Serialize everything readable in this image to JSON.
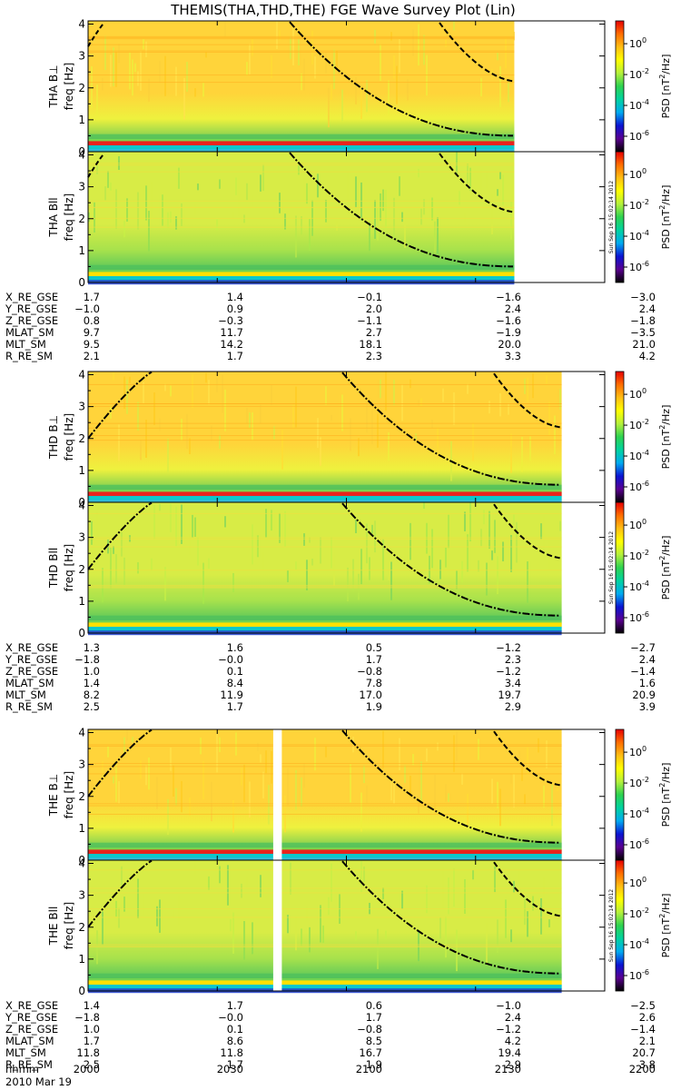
{
  "title": "THEMIS(THA,THD,THE) FGE Wave Survey Plot (Lin)",
  "chart_data": {
    "type": "heatmap",
    "x_unit": "hhmm",
    "x_ticks": [
      "2000",
      "2030",
      "2100",
      "2130",
      "2200"
    ],
    "xlim": [
      "2000",
      "2200"
    ],
    "date": "2010 Mar 19",
    "ylabel": "freq [Hz]",
    "y_ticks": [
      0,
      1,
      2,
      3,
      4
    ],
    "ylim": [
      0,
      4.1
    ],
    "colorbar": {
      "label": "PSD [nT²/Hz]",
      "label_base": "PSD [nT",
      "label_sup": "2",
      "label_tail": "/Hz]",
      "scale": "log",
      "ticks": [
        {
          "value": 1,
          "label": "10",
          "exp": "0"
        },
        {
          "value": 0.01,
          "label": "10",
          "exp": "-2"
        },
        {
          "value": 0.0001,
          "label": "10",
          "exp": "-4"
        },
        {
          "value": 1e-06,
          "label": "10",
          "exp": "-6"
        }
      ],
      "colors": [
        "#000000",
        "#5a0090",
        "#0a14d2",
        "#00aaf0",
        "#00d2a0",
        "#2ed250",
        "#b4f03c",
        "#ffff00",
        "#ffbe14",
        "#ff6e00",
        "#e60000"
      ]
    },
    "timestamp": "Sun Sep 16 15:02:14 2012",
    "probes": [
      {
        "panels": [
          {
            "label": "THA B⊥",
            "band_color": "#e9231c"
          },
          {
            "label": "THA Bll",
            "band_color": "#ffe000"
          }
        ],
        "data_end": "2139",
        "gaps": [],
        "ephemeris": [
          {
            "name": "X_RE_GSE",
            "values": [
              "1.7",
              "1.4",
              "−0.1",
              "−1.6",
              "−3.0"
            ]
          },
          {
            "name": "Y_RE_GSE",
            "values": [
              "−1.0",
              "0.9",
              "2.0",
              "2.4",
              "2.4"
            ]
          },
          {
            "name": "Z_RE_GSE",
            "values": [
              "0.8",
              "−0.3",
              "−1.1",
              "−1.6",
              "−1.8"
            ]
          },
          {
            "name": "MLAT_SM",
            "values": [
              "9.7",
              "11.7",
              "2.7",
              "−1.9",
              "−3.5"
            ]
          },
          {
            "name": "MLT_SM",
            "values": [
              "9.5",
              "14.2",
              "18.1",
              "20.0",
              "21.0"
            ]
          },
          {
            "name": "R_RE_SM",
            "values": [
              "2.1",
              "1.7",
              "2.3",
              "3.3",
              "4.2"
            ]
          }
        ]
      },
      {
        "panels": [
          {
            "label": "THD B⊥",
            "band_color": "#e9231c"
          },
          {
            "label": "THD Bll",
            "band_color": "#ffe000"
          }
        ],
        "data_end": "2150",
        "gaps": [],
        "ephemeris": [
          {
            "name": "X_RE_GSE",
            "values": [
              "1.3",
              "1.6",
              "0.5",
              "−1.2",
              "−2.7"
            ]
          },
          {
            "name": "Y_RE_GSE",
            "values": [
              "−1.8",
              "−0.0",
              "1.7",
              "2.3",
              "2.4"
            ]
          },
          {
            "name": "Z_RE_GSE",
            "values": [
              "1.0",
              "0.1",
              "−0.8",
              "−1.2",
              "−1.4"
            ]
          },
          {
            "name": "MLAT_SM",
            "values": [
              "1.4",
              "8.4",
              "7.8",
              "3.4",
              "1.6"
            ]
          },
          {
            "name": "MLT_SM",
            "values": [
              "8.2",
              "11.9",
              "17.0",
              "19.7",
              "20.9"
            ]
          },
          {
            "name": "R_RE_SM",
            "values": [
              "2.5",
              "1.7",
              "1.9",
              "2.9",
              "3.9"
            ]
          }
        ]
      },
      {
        "panels": [
          {
            "label": "THE B⊥",
            "band_color": "#e9231c"
          },
          {
            "label": "THE Bll",
            "band_color": "#ffe000"
          }
        ],
        "data_end": "2150",
        "gaps": [
          [
            "2043",
            "2045"
          ]
        ],
        "ephemeris": [
          {
            "name": "X_RE_GSE",
            "values": [
              "1.4",
              "1.7",
              "0.6",
              "−1.0",
              "−2.5"
            ]
          },
          {
            "name": "Y_RE_GSE",
            "values": [
              "−1.8",
              "−0.0",
              "1.7",
              "2.4",
              "2.6"
            ]
          },
          {
            "name": "Z_RE_GSE",
            "values": [
              "1.0",
              "0.1",
              "−0.8",
              "−1.2",
              "−1.4"
            ]
          },
          {
            "name": "MLAT_SM",
            "values": [
              "1.7",
              "8.6",
              "8.5",
              "4.2",
              "2.1"
            ]
          },
          {
            "name": "MLT_SM",
            "values": [
              "11.8",
              "11.8",
              "16.7",
              "19.4",
              "20.7"
            ]
          },
          {
            "name": "R_RE_SM",
            "values": [
              "2.5",
              "1.7",
              "1.9",
              "2.9",
              "3.8"
            ]
          }
        ]
      }
    ]
  }
}
